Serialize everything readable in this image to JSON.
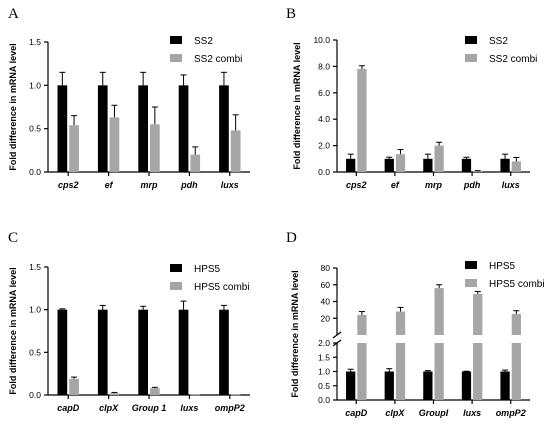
{
  "colors": {
    "series1": "#000000",
    "series2": "#a6a6a6"
  },
  "chart_data": [
    {
      "panel": "A",
      "type": "bar",
      "ylabel": "Fold difference in mRNA level",
      "ylim": [
        0,
        1.5
      ],
      "yticks": [
        "0.0",
        "0.5",
        "1.0",
        "1.5"
      ],
      "categories": [
        "cps2",
        "ef",
        "mrp",
        "pdh",
        "luxs"
      ],
      "legend_position": "top-right",
      "series": [
        {
          "name": "SS2",
          "values": [
            1.0,
            1.0,
            1.0,
            1.0,
            1.0
          ],
          "errors": [
            0.15,
            0.15,
            0.15,
            0.12,
            0.15
          ]
        },
        {
          "name": "SS2 combi",
          "values": [
            0.54,
            0.63,
            0.55,
            0.2,
            0.48
          ],
          "errors": [
            0.11,
            0.14,
            0.2,
            0.09,
            0.18
          ]
        }
      ]
    },
    {
      "panel": "B",
      "type": "bar",
      "ylabel": "Fold difference in mRNA level",
      "ylim": [
        0,
        10
      ],
      "yticks": [
        "0.0",
        "2.0",
        "4.0",
        "6.0",
        "8.0",
        "10.0"
      ],
      "categories": [
        "cps2",
        "ef",
        "mrp",
        "pdh",
        "luxs"
      ],
      "legend_position": "top-right",
      "series": [
        {
          "name": "SS2",
          "values": [
            1.0,
            1.0,
            1.0,
            1.0,
            1.0
          ],
          "errors": [
            0.35,
            0.12,
            0.35,
            0.12,
            0.35
          ]
        },
        {
          "name": "SS2 combi",
          "values": [
            7.8,
            1.35,
            2.0,
            0.05,
            0.8
          ],
          "errors": [
            0.25,
            0.35,
            0.25,
            0.05,
            0.3
          ]
        }
      ]
    },
    {
      "panel": "C",
      "type": "bar",
      "ylabel": "Fold difference in mRNA level",
      "ylim": [
        0,
        1.5
      ],
      "yticks": [
        "0.0",
        "0.5",
        "1.0",
        "1.5"
      ],
      "categories": [
        "capD",
        "clpX",
        "Group 1",
        "luxs",
        "ompP2"
      ],
      "legend_position": "top-right",
      "series": [
        {
          "name": "HPS5",
          "values": [
            1.0,
            1.0,
            1.0,
            1.0,
            1.0
          ],
          "errors": [
            0.01,
            0.05,
            0.04,
            0.1,
            0.05
          ]
        },
        {
          "name": "HPS5 combi",
          "values": [
            0.19,
            0.02,
            0.08,
            0.005,
            0.005
          ],
          "errors": [
            0.02,
            0.01,
            0.01,
            0.0,
            0.0
          ]
        }
      ]
    },
    {
      "panel": "D",
      "type": "bar",
      "ylabel": "Fold difference in mRNA level",
      "axis_break": true,
      "lower_ylim": [
        0,
        2.0
      ],
      "lower_yticks": [
        "0.0",
        "0.5",
        "1.0",
        "1.5",
        "2.0"
      ],
      "upper_ylim": [
        0,
        80
      ],
      "upper_yticks": [
        "20",
        "40",
        "60",
        "80"
      ],
      "categories": [
        "capD",
        "clpX",
        "GroupI",
        "luxs",
        "ompP2"
      ],
      "legend_position": "top-right",
      "series": [
        {
          "name": "HPS5",
          "values": [
            1.0,
            1.0,
            1.0,
            1.0,
            1.0
          ],
          "errors": [
            0.08,
            0.1,
            0.03,
            0.01,
            0.05
          ]
        },
        {
          "name": "HPS5 combi",
          "values": [
            24,
            28,
            56,
            49,
            25
          ],
          "errors": [
            4,
            5,
            4,
            3,
            4
          ]
        }
      ]
    }
  ]
}
